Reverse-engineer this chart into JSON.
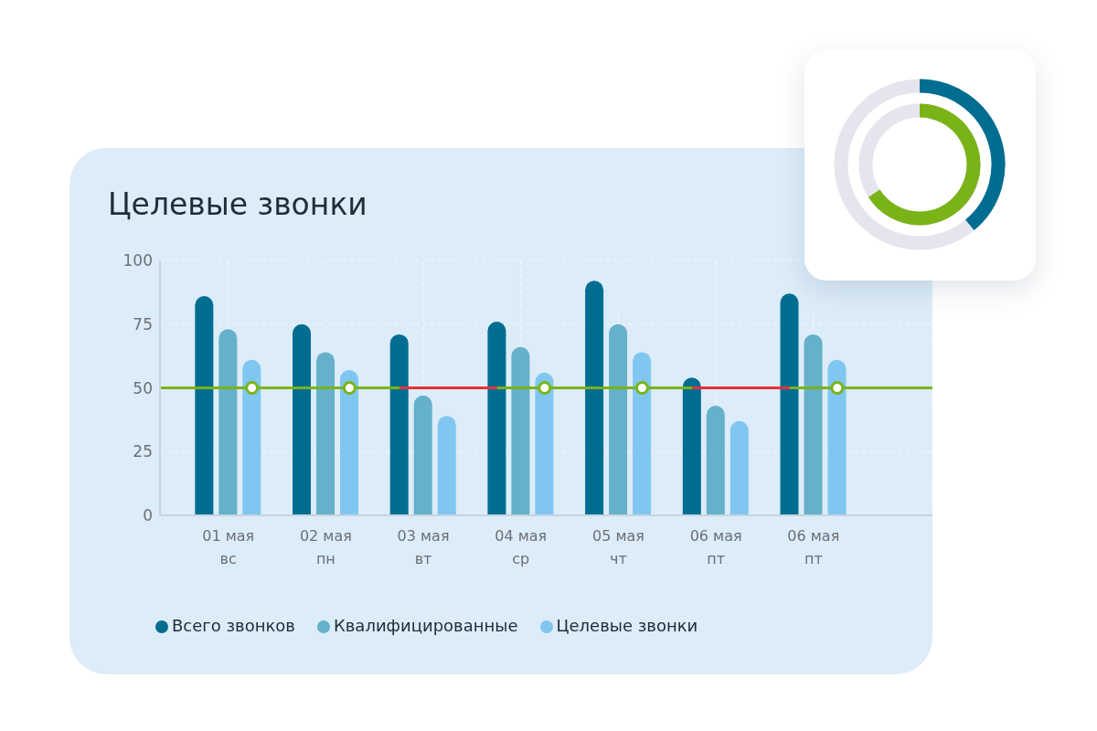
{
  "chart_data": {
    "type": "bar",
    "title": "Целевые звонки",
    "categories": [
      "01 мая\nвс",
      "02 мая\nпн",
      "03 мая\nвт",
      "04 мая\nср",
      "05 мая\nчт",
      "06 мая\nпт",
      "06 мая\nпт"
    ],
    "series": [
      {
        "name": "Всего звонков",
        "color": "#006d91",
        "values": [
          86,
          75,
          71,
          76,
          92,
          54,
          87
        ]
      },
      {
        "name": "Квалифицированные",
        "color": "#65b0cb",
        "values": [
          73,
          64,
          47,
          66,
          75,
          43,
          71
        ]
      },
      {
        "name": "Целевые звонки",
        "color": "#7fc7f1",
        "values": [
          61,
          57,
          39,
          56,
          64,
          37,
          61
        ]
      },
      {
        "type": "line",
        "color": "#e3313a",
        "values": [
          null,
          null,
          50,
          50,
          null,
          50,
          50
        ]
      },
      {
        "type": "scatter",
        "color": "#7ab317",
        "marker": "circle",
        "values": [
          50,
          50,
          null,
          50,
          50,
          null,
          50
        ]
      }
    ],
    "ylim": [
      0,
      100
    ],
    "yticks": [
      0,
      25,
      50,
      75,
      100
    ],
    "ref_lines": [
      {
        "axis": "y",
        "value": 50,
        "color": "#7ab317"
      }
    ],
    "grid": true,
    "legend": "bottom left"
  }
}
